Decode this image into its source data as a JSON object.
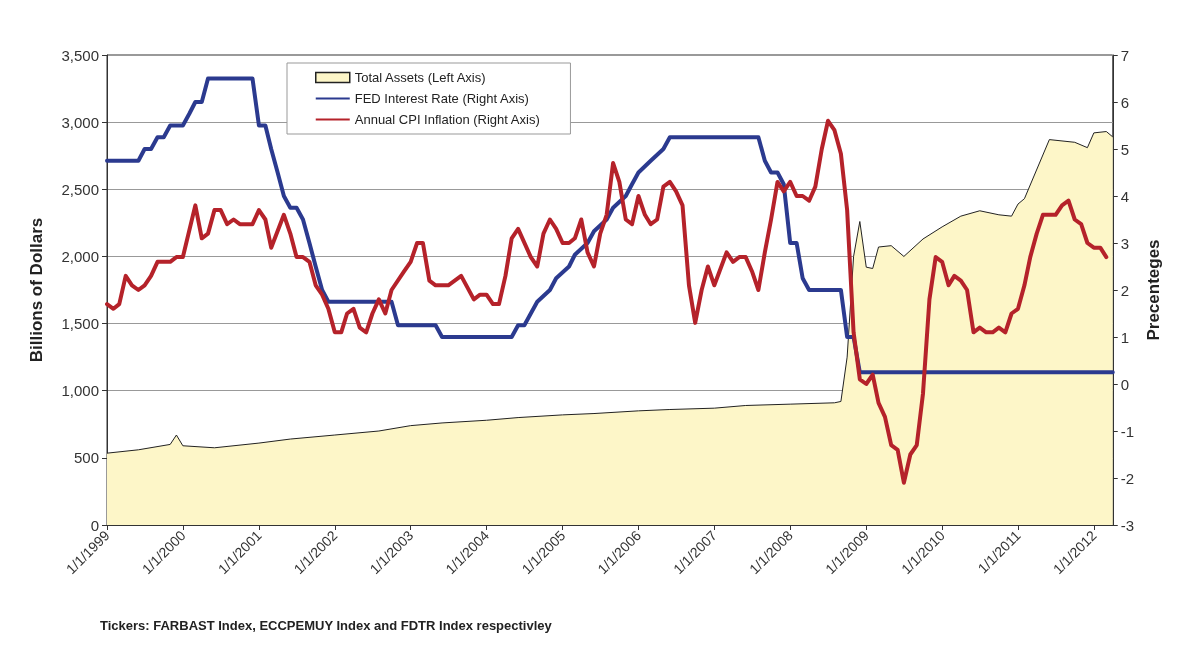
{
  "chart_data": {
    "type": "line",
    "xlabel": null,
    "ylabel": "Billions of Dollars",
    "y2label": "Precenteges",
    "annotations": [
      "Tickers: FARBAST Index, ECCPEMUY Index and FDTR Index respectivley"
    ],
    "xlim": [
      "1999-01",
      "2012-04"
    ],
    "xticks": [
      {
        "value": "1999-01",
        "label": "1/1/1999"
      },
      {
        "value": "2000-01",
        "label": "1/1/2000"
      },
      {
        "value": "2001-01",
        "label": "1/1/2001"
      },
      {
        "value": "2002-01",
        "label": "1/1/2002"
      },
      {
        "value": "2003-01",
        "label": "1/1/2003"
      },
      {
        "value": "2004-01",
        "label": "1/1/2004"
      },
      {
        "value": "2005-01",
        "label": "1/1/2005"
      },
      {
        "value": "2006-01",
        "label": "1/1/2006"
      },
      {
        "value": "2007-01",
        "label": "1/1/2007"
      },
      {
        "value": "2008-01",
        "label": "1/1/2008"
      },
      {
        "value": "2009-01",
        "label": "1/1/2009"
      },
      {
        "value": "2010-01",
        "label": "1/1/2010"
      },
      {
        "value": "2011-01",
        "label": "1/1/2011"
      },
      {
        "value": "2012-01",
        "label": "1/1/2012"
      }
    ],
    "ylim": [
      0,
      3500
    ],
    "yticks": [
      {
        "value": 0,
        "label": "0"
      },
      {
        "value": 500,
        "label": "500"
      },
      {
        "value": 1000,
        "label": "1,000"
      },
      {
        "value": 1500,
        "label": "1,500"
      },
      {
        "value": 2000,
        "label": "2,000"
      },
      {
        "value": 2500,
        "label": "2,500"
      },
      {
        "value": 3000,
        "label": "3,000"
      },
      {
        "value": 3500,
        "label": "3,500"
      }
    ],
    "y2lim": [
      -3,
      7
    ],
    "y2ticks": [
      -3,
      -2,
      -1,
      0,
      1,
      2,
      3,
      4,
      5,
      6,
      7
    ],
    "grid": "y",
    "legend": "top left",
    "marker": "none",
    "series": [
      {
        "name": "Total Assets (Left Axis)",
        "type": "area",
        "color": "#fdf6c8",
        "x": [
          "1999-01",
          "1999-06",
          "1999-11",
          "1999-12",
          "2000-01",
          "2000-06",
          "2001-01",
          "2001-06",
          "2002-01",
          "2002-08",
          "2003-01",
          "2003-06",
          "2004-01",
          "2004-06",
          "2005-01",
          "2005-06",
          "2006-01",
          "2006-06",
          "2007-01",
          "2007-06",
          "2008-01",
          "2008-08",
          "2008-09",
          "2008-10",
          "2008-11",
          "2008-12",
          "2009-01",
          "2009-02",
          "2009-03",
          "2009-05",
          "2009-07",
          "2009-10",
          "2010-01",
          "2010-04",
          "2010-07",
          "2010-10",
          "2010-12",
          "2011-01",
          "2011-02",
          "2011-06",
          "2011-10",
          "2011-12",
          "2012-01",
          "2012-03",
          "2012-04"
        ],
        "values": [
          535,
          560,
          600,
          670,
          590,
          575,
          610,
          640,
          670,
          700,
          740,
          760,
          780,
          800,
          820,
          830,
          850,
          860,
          870,
          890,
          900,
          910,
          920,
          1250,
          2000,
          2260,
          1920,
          1910,
          2070,
          2080,
          2000,
          2130,
          2220,
          2300,
          2340,
          2310,
          2300,
          2390,
          2430,
          2870,
          2850,
          2810,
          2920,
          2930,
          2890
        ]
      },
      {
        "name": "FED Interest Rate (Right Axis)",
        "axis": "y2",
        "color": "#2b3a8f",
        "x": [
          "1999-01",
          "1999-06",
          "1999-07",
          "1999-08",
          "1999-09",
          "1999-10",
          "1999-11",
          "2000-01",
          "2000-02",
          "2000-03",
          "2000-04",
          "2000-05",
          "2000-12",
          "2001-01",
          "2001-02",
          "2001-03",
          "2001-04",
          "2001-05",
          "2001-06",
          "2001-07",
          "2001-08",
          "2001-09",
          "2001-10",
          "2001-11",
          "2001-12",
          "2002-10",
          "2002-11",
          "2003-05",
          "2003-06",
          "2004-05",
          "2004-06",
          "2004-07",
          "2004-08",
          "2004-09",
          "2004-11",
          "2004-12",
          "2005-02",
          "2005-03",
          "2005-05",
          "2005-06",
          "2005-08",
          "2005-09",
          "2005-11",
          "2005-12",
          "2006-01",
          "2006-03",
          "2006-05",
          "2006-06",
          "2007-08",
          "2007-09",
          "2007-10",
          "2007-11",
          "2007-12",
          "2008-01",
          "2008-02",
          "2008-03",
          "2008-04",
          "2008-09",
          "2008-10",
          "2008-11",
          "2008-12",
          "2012-04"
        ],
        "values": [
          4.75,
          4.75,
          5.0,
          5.0,
          5.25,
          5.25,
          5.5,
          5.5,
          5.75,
          6.0,
          6.0,
          6.5,
          6.5,
          5.5,
          5.5,
          5.0,
          4.5,
          4.0,
          3.75,
          3.75,
          3.5,
          3.0,
          2.5,
          2.0,
          1.75,
          1.75,
          1.25,
          1.25,
          1.0,
          1.0,
          1.25,
          1.25,
          1.5,
          1.75,
          2.0,
          2.25,
          2.5,
          2.75,
          3.0,
          3.25,
          3.5,
          3.75,
          4.0,
          4.25,
          4.5,
          4.75,
          5.0,
          5.25,
          5.25,
          4.75,
          4.5,
          4.5,
          4.25,
          3.0,
          3.0,
          2.25,
          2.0,
          2.0,
          1.0,
          1.0,
          0.25,
          0.25
        ]
      },
      {
        "name": "Annual CPI Inflation (Right Axis)",
        "axis": "y2",
        "color": "#b5222a",
        "x": [
          "1999-01",
          "1999-02",
          "1999-03",
          "1999-04",
          "1999-05",
          "1999-06",
          "1999-07",
          "1999-08",
          "1999-09",
          "1999-11",
          "1999-12",
          "2000-01",
          "2000-03",
          "2000-04",
          "2000-05",
          "2000-06",
          "2000-07",
          "2000-08",
          "2000-09",
          "2000-10",
          "2000-12",
          "2001-01",
          "2001-02",
          "2001-03",
          "2001-05",
          "2001-06",
          "2001-07",
          "2001-08",
          "2001-09",
          "2001-10",
          "2001-11",
          "2001-12",
          "2002-01",
          "2002-02",
          "2002-03",
          "2002-04",
          "2002-05",
          "2002-06",
          "2002-07",
          "2002-08",
          "2002-09",
          "2002-10",
          "2002-12",
          "2003-01",
          "2003-02",
          "2003-03",
          "2003-04",
          "2003-05",
          "2003-07",
          "2003-08",
          "2003-09",
          "2003-11",
          "2003-12",
          "2004-01",
          "2004-02",
          "2004-03",
          "2004-04",
          "2004-05",
          "2004-06",
          "2004-08",
          "2004-09",
          "2004-10",
          "2004-11",
          "2004-12",
          "2005-01",
          "2005-02",
          "2005-03",
          "2005-04",
          "2005-05",
          "2005-06",
          "2005-07",
          "2005-08",
          "2005-09",
          "2005-10",
          "2005-11",
          "2005-12",
          "2006-01",
          "2006-02",
          "2006-03",
          "2006-04",
          "2006-05",
          "2006-06",
          "2006-07",
          "2006-08",
          "2006-09",
          "2006-10",
          "2006-11",
          "2006-12",
          "2007-01",
          "2007-03",
          "2007-04",
          "2007-05",
          "2007-06",
          "2007-07",
          "2007-08",
          "2007-09",
          "2007-10",
          "2007-11",
          "2007-12",
          "2008-01",
          "2008-02",
          "2008-03",
          "2008-04",
          "2008-05",
          "2008-06",
          "2008-07",
          "2008-08",
          "2008-09",
          "2008-10",
          "2008-11",
          "2008-12",
          "2009-01",
          "2009-02",
          "2009-03",
          "2009-04",
          "2009-05",
          "2009-06",
          "2009-07",
          "2009-08",
          "2009-09",
          "2009-10",
          "2009-11",
          "2009-12",
          "2010-01",
          "2010-02",
          "2010-03",
          "2010-04",
          "2010-05",
          "2010-06",
          "2010-07",
          "2010-08",
          "2010-09",
          "2010-10",
          "2010-11",
          "2010-12",
          "2011-01",
          "2011-02",
          "2011-03",
          "2011-04",
          "2011-05",
          "2011-06",
          "2011-07",
          "2011-08",
          "2011-09",
          "2011-10",
          "2011-11",
          "2011-12",
          "2012-01",
          "2012-02",
          "2012-03"
        ],
        "values": [
          1.7,
          1.6,
          1.7,
          2.3,
          2.1,
          2.0,
          2.1,
          2.3,
          2.6,
          2.6,
          2.7,
          2.7,
          3.8,
          3.1,
          3.2,
          3.7,
          3.7,
          3.4,
          3.5,
          3.4,
          3.4,
          3.7,
          3.5,
          2.9,
          3.6,
          3.2,
          2.7,
          2.7,
          2.6,
          2.1,
          1.9,
          1.6,
          1.1,
          1.1,
          1.5,
          1.6,
          1.2,
          1.1,
          1.5,
          1.8,
          1.5,
          2.0,
          2.4,
          2.6,
          3.0,
          3.0,
          2.2,
          2.1,
          2.1,
          2.2,
          2.3,
          1.8,
          1.9,
          1.9,
          1.7,
          1.7,
          2.3,
          3.1,
          3.3,
          2.7,
          2.5,
          3.2,
          3.5,
          3.3,
          3.0,
          3.0,
          3.1,
          3.5,
          2.8,
          2.5,
          3.2,
          3.6,
          4.7,
          4.3,
          3.5,
          3.4,
          4.0,
          3.6,
          3.4,
          3.5,
          4.2,
          4.3,
          4.1,
          3.8,
          2.1,
          1.3,
          2.0,
          2.5,
          2.1,
          2.8,
          2.6,
          2.7,
          2.7,
          2.4,
          2.0,
          2.8,
          3.5,
          4.3,
          4.1,
          4.3,
          4.0,
          4.0,
          3.9,
          4.2,
          5.0,
          5.6,
          5.4,
          4.9,
          3.7,
          1.1,
          0.1,
          0.0,
          0.2,
          -0.4,
          -0.7,
          -1.3,
          -1.4,
          -2.1,
          -1.5,
          -1.3,
          -0.2,
          1.8,
          2.7,
          2.6,
          2.1,
          2.3,
          2.2,
          2.0,
          1.1,
          1.2,
          1.1,
          1.1,
          1.2,
          1.1,
          1.5,
          1.6,
          2.1,
          2.7,
          3.2,
          3.6,
          3.6,
          3.6,
          3.8,
          3.9,
          3.5,
          3.4,
          3.0,
          2.9,
          2.9,
          2.7
        ]
      }
    ]
  }
}
